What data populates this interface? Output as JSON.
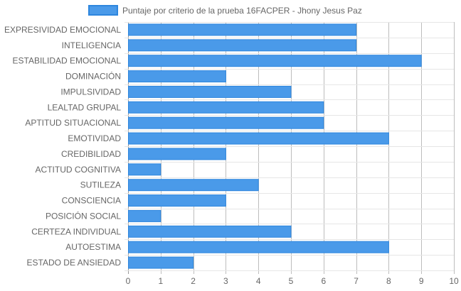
{
  "chart_data": {
    "type": "bar",
    "orientation": "horizontal",
    "categories": [
      "EXPRESIVIDAD EMOCIONAL",
      "INTELIGENCIA",
      "ESTABILIDAD EMOCIONAL",
      "DOMINACIÓN",
      "IMPULSIVIDAD",
      "LEALTAD GRUPAL",
      "APTITUD SITUACIONAL",
      "EMOTIVIDAD",
      "CREDIBILIDAD",
      "ACTITUD COGNITIVA",
      "SUTILEZA",
      "CONSCIENCIA",
      "POSICIÓN SOCIAL",
      "CERTEZA INDIVIDUAL",
      "AUTOESTIMA",
      "ESTADO DE ANSIEDAD"
    ],
    "series": [
      {
        "name": "Puntaje por criterio de la prueba 16FACPER - Jhony Jesus Paz",
        "values": [
          7,
          7,
          9,
          3,
          5,
          6,
          6,
          8,
          3,
          1,
          4,
          3,
          1,
          5,
          8,
          2
        ]
      }
    ],
    "xlim": [
      0,
      10
    ],
    "xticks": [
      "0",
      "1",
      "2",
      "3",
      "4",
      "5",
      "6",
      "7",
      "8",
      "9",
      "10"
    ],
    "grid": true,
    "legend_position": "top",
    "colors": {
      "bar_fill": "#4a9ae9",
      "bar_stroke": "#2e86de",
      "grid": "#e6e6e6",
      "grid_major": "#bdbdbd"
    }
  }
}
